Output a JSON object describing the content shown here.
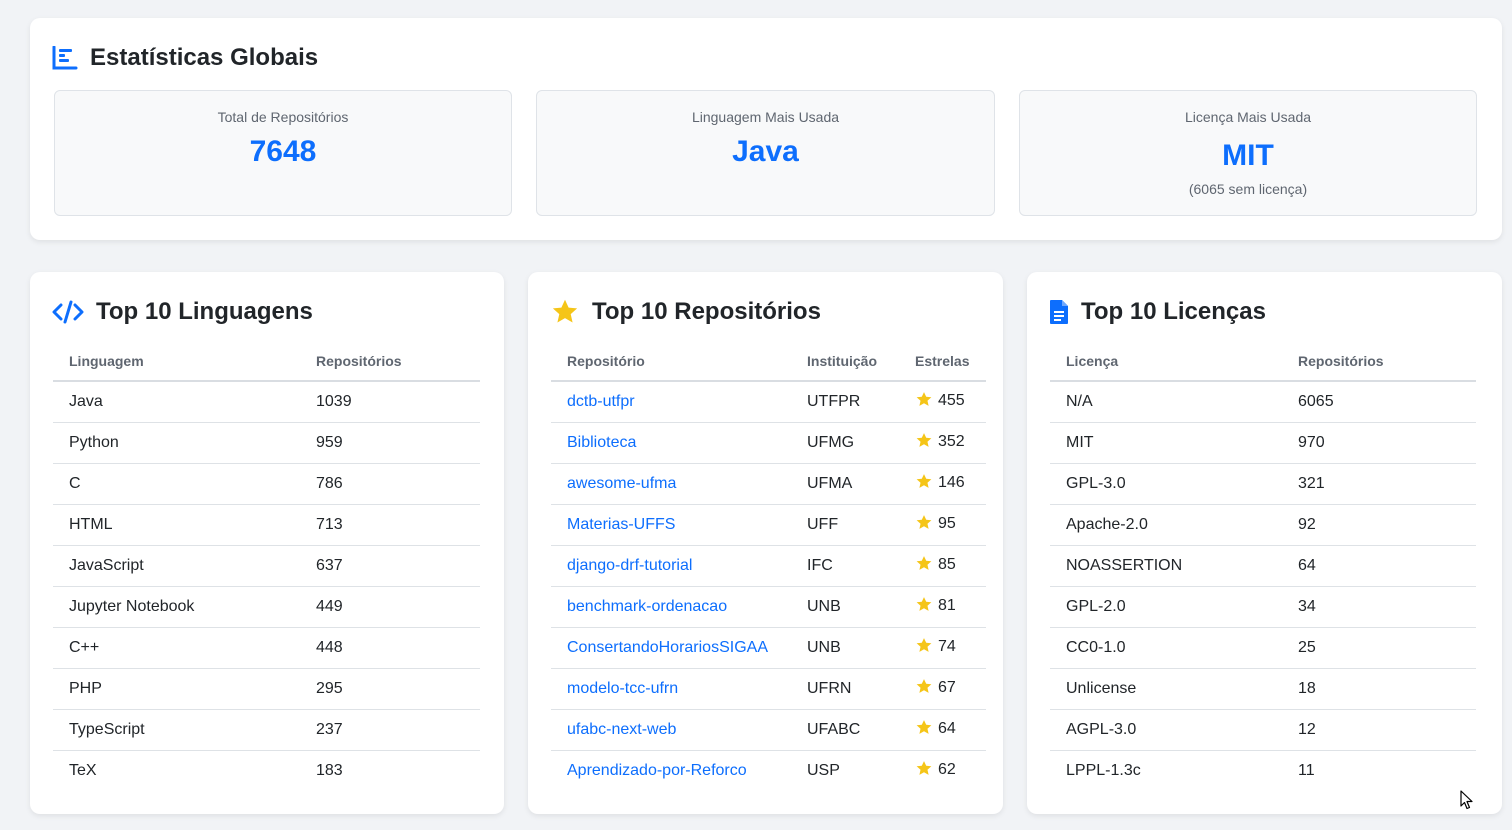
{
  "global": {
    "title": "Estatísticas Globais",
    "stats": [
      {
        "label": "Total de Repositórios",
        "value": "7648"
      },
      {
        "label": "Linguagem Mais Usada",
        "value": "Java"
      },
      {
        "label": "Licença Mais Usada",
        "value": "MIT",
        "sub": "(6065 sem licença)"
      }
    ]
  },
  "languages": {
    "title": "Top 10 Linguagens",
    "headers": [
      "Linguagem",
      "Repositórios"
    ],
    "rows": [
      [
        "Java",
        "1039"
      ],
      [
        "Python",
        "959"
      ],
      [
        "C",
        "786"
      ],
      [
        "HTML",
        "713"
      ],
      [
        "JavaScript",
        "637"
      ],
      [
        "Jupyter Notebook",
        "449"
      ],
      [
        "C++",
        "448"
      ],
      [
        "PHP",
        "295"
      ],
      [
        "TypeScript",
        "237"
      ],
      [
        "TeX",
        "183"
      ]
    ]
  },
  "repos": {
    "title": "Top 10 Repositórios",
    "headers": [
      "Repositório",
      "Instituição",
      "Estrelas"
    ],
    "rows": [
      [
        "dctb-utfpr",
        "UTFPR",
        "455"
      ],
      [
        "Biblioteca",
        "UFMG",
        "352"
      ],
      [
        "awesome-ufma",
        "UFMA",
        "146"
      ],
      [
        "Materias-UFFS",
        "UFF",
        "95"
      ],
      [
        "django-drf-tutorial",
        "IFC",
        "85"
      ],
      [
        "benchmark-ordenacao",
        "UNB",
        "81"
      ],
      [
        "ConsertandoHorariosSIGAA",
        "UNB",
        "74"
      ],
      [
        "modelo-tcc-ufrn",
        "UFRN",
        "67"
      ],
      [
        "ufabc-next-web",
        "UFABC",
        "64"
      ],
      [
        "Aprendizado-por-Reforco",
        "USP",
        "62"
      ]
    ]
  },
  "licenses": {
    "title": "Top 10 Licenças",
    "headers": [
      "Licença",
      "Repositórios"
    ],
    "rows": [
      [
        "N/A",
        "6065"
      ],
      [
        "MIT",
        "970"
      ],
      [
        "GPL-3.0",
        "321"
      ],
      [
        "Apache-2.0",
        "92"
      ],
      [
        "NOASSERTION",
        "64"
      ],
      [
        "GPL-2.0",
        "34"
      ],
      [
        "CC0-1.0",
        "25"
      ],
      [
        "Unlicense",
        "18"
      ],
      [
        "AGPL-3.0",
        "12"
      ],
      [
        "LPPL-1.3c",
        "11"
      ]
    ]
  },
  "colors": {
    "accent": "#0d6efd",
    "star": "#f5c518",
    "page_bg": "#f1f3f6"
  },
  "icons": {
    "global": "bar-chart-icon",
    "languages": "code-icon",
    "repos": "star-icon",
    "licenses": "document-icon"
  }
}
